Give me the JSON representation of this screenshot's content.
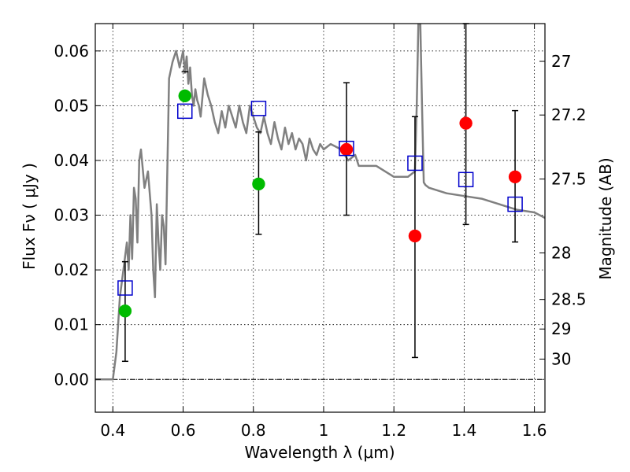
{
  "chart_data": {
    "type": "scatter",
    "xlabel": "Wavelength  λ (μm)",
    "ylabel": "Flux  Fν  ( μJy )",
    "ylabel_right": "Magnitude (AB)",
    "xlim": [
      0.35,
      1.63
    ],
    "ylim": [
      -0.006,
      0.065
    ],
    "grid": true,
    "x_ticks": [
      0.4,
      0.6,
      0.8,
      1.0,
      1.2,
      1.4,
      1.6
    ],
    "x_tick_labels": [
      "0.4",
      "0.6",
      "0.8",
      "1",
      "1.2",
      "1.4",
      "1.6"
    ],
    "y_ticks": [
      0.0,
      0.01,
      0.02,
      0.03,
      0.04,
      0.05,
      0.06
    ],
    "y_tick_labels": [
      "0.00",
      "0.01",
      "0.02",
      "0.03",
      "0.04",
      "0.05",
      "0.06"
    ],
    "right_ticks": [
      {
        "flux": 0.0581,
        "label": "27"
      },
      {
        "flux": 0.0483,
        "label": "27.2"
      },
      {
        "flux": 0.0366,
        "label": "27.5"
      },
      {
        "flux": 0.0231,
        "label": "28"
      },
      {
        "flux": 0.0146,
        "label": "28.5"
      },
      {
        "flux": 0.0092,
        "label": "29"
      },
      {
        "flux": 0.0037,
        "label": "30"
      }
    ],
    "sed_model": {
      "color": "#808080",
      "x": [
        0.35,
        0.4,
        0.41,
        0.415,
        0.42,
        0.43,
        0.44,
        0.445,
        0.45,
        0.455,
        0.46,
        0.465,
        0.47,
        0.475,
        0.48,
        0.49,
        0.5,
        0.51,
        0.515,
        0.52,
        0.525,
        0.53,
        0.535,
        0.54,
        0.545,
        0.55,
        0.56,
        0.57,
        0.58,
        0.59,
        0.6,
        0.605,
        0.61,
        0.615,
        0.62,
        0.625,
        0.63,
        0.635,
        0.64,
        0.645,
        0.65,
        0.66,
        0.67,
        0.68,
        0.69,
        0.7,
        0.71,
        0.72,
        0.73,
        0.74,
        0.75,
        0.76,
        0.77,
        0.78,
        0.79,
        0.8,
        0.81,
        0.82,
        0.83,
        0.84,
        0.85,
        0.86,
        0.87,
        0.88,
        0.89,
        0.9,
        0.91,
        0.92,
        0.93,
        0.94,
        0.95,
        0.96,
        0.97,
        0.98,
        0.99,
        1.0,
        1.02,
        1.05,
        1.07,
        1.09,
        1.1,
        1.12,
        1.15,
        1.2,
        1.24,
        1.26,
        1.265,
        1.27,
        1.275,
        1.28,
        1.285,
        1.29,
        1.3,
        1.35,
        1.4,
        1.45,
        1.5,
        1.55,
        1.6,
        1.63
      ],
      "y": [
        0.0,
        0.0,
        0.005,
        0.01,
        0.015,
        0.02,
        0.025,
        0.02,
        0.03,
        0.022,
        0.035,
        0.033,
        0.025,
        0.04,
        0.042,
        0.035,
        0.038,
        0.03,
        0.02,
        0.015,
        0.032,
        0.025,
        0.02,
        0.03,
        0.028,
        0.021,
        0.055,
        0.058,
        0.06,
        0.057,
        0.06,
        0.056,
        0.059,
        0.054,
        0.057,
        0.052,
        0.05,
        0.053,
        0.051,
        0.05,
        0.048,
        0.055,
        0.052,
        0.05,
        0.047,
        0.045,
        0.049,
        0.046,
        0.05,
        0.048,
        0.046,
        0.05,
        0.047,
        0.045,
        0.05,
        0.048,
        0.046,
        0.045,
        0.048,
        0.045,
        0.043,
        0.047,
        0.044,
        0.042,
        0.046,
        0.043,
        0.045,
        0.042,
        0.044,
        0.043,
        0.04,
        0.044,
        0.042,
        0.041,
        0.043,
        0.042,
        0.043,
        0.042,
        0.04,
        0.041,
        0.039,
        0.039,
        0.039,
        0.037,
        0.037,
        0.038,
        0.05,
        0.066,
        0.066,
        0.05,
        0.036,
        0.0355,
        0.035,
        0.034,
        0.0335,
        0.033,
        0.032,
        0.031,
        0.0305,
        0.0295
      ]
    },
    "series": [
      {
        "name": "",
        "marker": "filled-circle",
        "color": "#00bb00",
        "x": [
          0.435,
          0.605,
          0.815
        ],
        "y": [
          0.0125,
          0.0518,
          0.0357
        ],
        "yerr_upper": [
          0.0215,
          0.0562,
          0.0452
        ],
        "yerr_lower": [
          0.0033,
          0.0562,
          0.0265
        ]
      },
      {
        "name": "",
        "marker": "filled-circle",
        "color": "#ff0000",
        "x": [
          1.065,
          1.26,
          1.405,
          1.545
        ],
        "y": [
          0.042,
          0.0262,
          0.0468,
          0.037
        ],
        "yerr_upper": [
          0.0542,
          0.048,
          0.065,
          0.0491
        ],
        "yerr_lower": [
          0.03,
          0.004,
          0.0283,
          0.0251
        ]
      },
      {
        "name": "",
        "marker": "open-square",
        "color": "#0000cc",
        "x": [
          0.435,
          0.605,
          0.815,
          1.065,
          1.26,
          1.405,
          1.545
        ],
        "y": [
          0.0167,
          0.049,
          0.0495,
          0.0422,
          0.0395,
          0.0365,
          0.032
        ]
      }
    ]
  }
}
